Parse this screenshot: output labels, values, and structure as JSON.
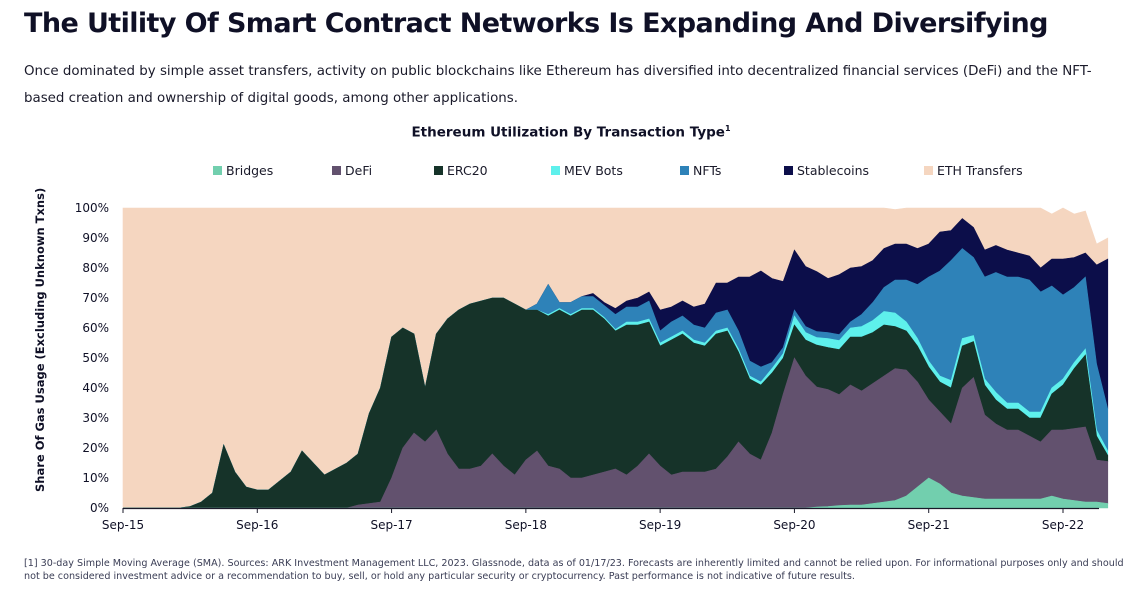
{
  "header": {
    "title": "The Utility Of Smart Contract Networks Is Expanding And Diversifying",
    "subtitle": "Once dominated by simple asset transfers, activity on public blockchains like Ethereum has diversified into decentralized financial services (DeFi) and the NFT-based creation and ownership of digital goods, among other applications."
  },
  "footnote": "[1] 30-day Simple Moving Average (SMA). Sources: ARK Investment Management LLC, 2023. Glassnode, data as of 01/17/23. Forecasts are inherently limited and cannot be relied upon. For informational purposes only and should not be considered investment advice or a recommendation to buy, sell, or hold any particular security or cryptocurrency. Past performance is not indicative of future results.",
  "chart_data": {
    "type": "area",
    "stacked": true,
    "title": "Ethereum Utilization By Transaction Type",
    "title_footnote_marker": "1",
    "xlabel": "",
    "ylabel": "Share Of Gas Usage (Excluding Unknown Txns)",
    "ylim": [
      0,
      100
    ],
    "y_ticks": [
      "0%",
      "10%",
      "20%",
      "30%",
      "40%",
      "50%",
      "60%",
      "70%",
      "80%",
      "90%",
      "100%"
    ],
    "x_ticks": [
      "Sep-15",
      "Sep-16",
      "Sep-17",
      "Sep-18",
      "Sep-19",
      "Sep-20",
      "Sep-21",
      "Sep-22"
    ],
    "x_range": [
      "Sep-15",
      "Jan-23"
    ],
    "legend_position": "top",
    "grid": false,
    "x": [
      "Sep-15",
      "Oct-15",
      "Nov-15",
      "Dec-15",
      "Jan-16",
      "Feb-16",
      "Mar-16",
      "Apr-16",
      "May-16",
      "Jun-16",
      "Jul-16",
      "Aug-16",
      "Sep-16",
      "Oct-16",
      "Nov-16",
      "Dec-16",
      "Jan-17",
      "Feb-17",
      "Mar-17",
      "Apr-17",
      "May-17",
      "Jun-17",
      "Jul-17",
      "Aug-17",
      "Sep-17",
      "Oct-17",
      "Nov-17",
      "Dec-17",
      "Jan-18",
      "Feb-18",
      "Mar-18",
      "Apr-18",
      "May-18",
      "Jun-18",
      "Jul-18",
      "Aug-18",
      "Sep-18",
      "Oct-18",
      "Nov-18",
      "Dec-18",
      "Jan-19",
      "Feb-19",
      "Mar-19",
      "Apr-19",
      "May-19",
      "Jun-19",
      "Jul-19",
      "Aug-19",
      "Sep-19",
      "Oct-19",
      "Nov-19",
      "Dec-19",
      "Jan-20",
      "Feb-20",
      "Mar-20",
      "Apr-20",
      "May-20",
      "Jun-20",
      "Jul-20",
      "Aug-20",
      "Sep-20",
      "Oct-20",
      "Nov-20",
      "Dec-20",
      "Jan-21",
      "Feb-21",
      "Mar-21",
      "Apr-21",
      "May-21",
      "Jun-21",
      "Jul-21",
      "Aug-21",
      "Sep-21",
      "Oct-21",
      "Nov-21",
      "Dec-21",
      "Jan-22",
      "Feb-22",
      "Mar-22",
      "Apr-22",
      "May-22",
      "Jun-22",
      "Jul-22",
      "Aug-22",
      "Sep-22",
      "Oct-22",
      "Nov-22",
      "Dec-22",
      "Jan-23"
    ],
    "series": [
      {
        "name": "Bridges",
        "color": "#72cfae",
        "values": [
          0,
          0,
          0,
          0,
          0,
          0,
          0,
          0,
          0,
          0,
          0,
          0,
          0,
          0,
          0,
          0,
          0,
          0,
          0,
          0,
          0,
          0,
          0,
          0,
          0,
          0,
          0,
          0,
          0,
          0,
          0,
          0,
          0,
          0,
          0,
          0,
          0,
          0,
          0,
          0,
          0,
          0,
          0,
          0,
          0,
          0,
          0,
          0,
          0,
          0,
          0,
          0,
          0,
          0,
          0,
          0,
          0,
          0,
          0,
          0,
          0,
          0,
          0.3,
          0.5,
          0.8,
          1,
          1,
          1.5,
          2,
          2.5,
          4,
          7,
          10,
          8,
          5,
          4,
          3.5,
          3,
          3,
          3,
          3,
          3,
          3,
          4,
          3,
          2.5,
          2,
          2,
          1.5
        ]
      },
      {
        "name": "DeFi",
        "color": "#62516e",
        "values": [
          0,
          0,
          0,
          0,
          0,
          0,
          0,
          0,
          0,
          0,
          0,
          0,
          0,
          0,
          0,
          0,
          0,
          0,
          0,
          0,
          0,
          1,
          1.5,
          2,
          10,
          20,
          25,
          22,
          26,
          18,
          13,
          13,
          14,
          18,
          14,
          11,
          16,
          19,
          14,
          13,
          10,
          10,
          11,
          12,
          13,
          11,
          14,
          18,
          14,
          11,
          12,
          12,
          12,
          13,
          17,
          22,
          18,
          16,
          25,
          38,
          50,
          44,
          40,
          39,
          37,
          40,
          38,
          40,
          42,
          44,
          42,
          35,
          26,
          24,
          23,
          36,
          40,
          28,
          25,
          23,
          23,
          21,
          19,
          22,
          23,
          24,
          25,
          14,
          14
        ]
      },
      {
        "name": "ERC20",
        "color": "#163329",
        "values": [
          0,
          0,
          0,
          0,
          0,
          0,
          0.5,
          2,
          5,
          21,
          12,
          7,
          6,
          6,
          9,
          12,
          19,
          15,
          11,
          13,
          15,
          17,
          30,
          38,
          47,
          40,
          33,
          18,
          32,
          45,
          53,
          55,
          55,
          52,
          56,
          57,
          50,
          47,
          50,
          53,
          54,
          56,
          55,
          51,
          46,
          50,
          47,
          44,
          40,
          45,
          46,
          43,
          42,
          45,
          42,
          30,
          25,
          25,
          20,
          12,
          11,
          12,
          14,
          14,
          15,
          16,
          18,
          17,
          17,
          14,
          13,
          12,
          11,
          10,
          12,
          14,
          12,
          10,
          8,
          7,
          7,
          6,
          8,
          12,
          15,
          20,
          24,
          8,
          2
        ]
      },
      {
        "name": "MEV Bots",
        "color": "#5ef0ec",
        "values": [
          0,
          0,
          0,
          0,
          0,
          0,
          0,
          0,
          0,
          0,
          0,
          0,
          0,
          0,
          0,
          0,
          0,
          0,
          0,
          0,
          0,
          0,
          0,
          0,
          0,
          0,
          0,
          0,
          0,
          0,
          0,
          0,
          0,
          0,
          0,
          0,
          0,
          0,
          0.5,
          0.5,
          0.5,
          0.5,
          0.5,
          0.5,
          0.5,
          1,
          1,
          1,
          1,
          1,
          1,
          1,
          1,
          1,
          1,
          1,
          1,
          1,
          1.5,
          1.5,
          3,
          2.5,
          2.5,
          3,
          3,
          3,
          3.5,
          4,
          4.5,
          4.5,
          3,
          2.5,
          2,
          2,
          2.5,
          2.5,
          2,
          2,
          2.5,
          2,
          2,
          2,
          2,
          2,
          2,
          2,
          2,
          2,
          1.5
        ]
      },
      {
        "name": "NFTs",
        "color": "#2e82b8",
        "values": [
          0,
          0,
          0,
          0,
          0,
          0,
          0,
          0,
          0,
          0,
          0,
          0,
          0,
          0,
          0,
          0,
          0,
          0,
          0,
          0,
          0,
          0,
          0,
          0,
          0,
          0,
          0,
          0,
          0,
          0,
          0,
          0,
          0,
          0,
          0,
          0,
          0,
          2,
          10,
          2,
          4,
          4,
          4,
          4,
          5,
          5,
          5,
          6,
          4,
          5,
          5,
          5,
          5,
          6,
          6,
          6,
          5,
          5,
          2,
          2,
          2,
          2,
          2,
          2,
          2,
          2,
          4,
          6,
          8,
          11,
          14,
          18,
          28,
          35,
          40,
          30,
          26,
          34,
          40,
          42,
          42,
          44,
          40,
          34,
          28,
          25,
          24,
          22,
          14
        ]
      },
      {
        "name": "Stablecoins",
        "color": "#0c0e4a",
        "values": [
          0,
          0,
          0,
          0,
          0,
          0,
          0,
          0,
          0,
          0,
          0,
          0,
          0,
          0,
          0,
          0,
          0,
          0,
          0,
          0,
          0,
          0,
          0,
          0,
          0,
          0,
          0,
          0,
          0,
          0,
          0,
          0,
          0,
          0,
          0,
          0,
          0,
          0,
          0,
          0,
          0,
          0,
          1,
          1,
          2,
          2,
          3,
          3,
          7,
          5,
          5,
          6,
          8,
          10,
          9,
          18,
          28,
          32,
          28,
          22,
          20,
          20,
          20,
          18,
          20,
          18,
          16,
          14,
          13,
          12,
          12,
          12,
          11,
          13,
          10,
          10,
          10,
          9,
          9,
          9,
          8,
          8,
          8,
          9,
          12,
          10,
          8,
          33,
          50
        ]
      },
      {
        "name": "ETH Transfers",
        "color": "#f5d6c0",
        "values": [
          100,
          100,
          100,
          100,
          100,
          100,
          99.5,
          98,
          95,
          79,
          88,
          93,
          94,
          94,
          91,
          88,
          81,
          85,
          89,
          87,
          85,
          82,
          68.5,
          60,
          43,
          40,
          42,
          60,
          42,
          37,
          34,
          32,
          31,
          30,
          30,
          32,
          34,
          32,
          25.5,
          31.5,
          31.5,
          29.5,
          28.5,
          31.5,
          33.5,
          31,
          30,
          28,
          34,
          33,
          31,
          33,
          32,
          25,
          25,
          23,
          23,
          21,
          23.5,
          24.5,
          14,
          19.5,
          21.2,
          23.5,
          22.2,
          20,
          19.5,
          17.5,
          13.5,
          11.5,
          12,
          13.5,
          12,
          8,
          7.5,
          3.5,
          6.5,
          14,
          12.5,
          14,
          15,
          16,
          20,
          15,
          17,
          14.5,
          14,
          7,
          7
        ]
      }
    ]
  }
}
